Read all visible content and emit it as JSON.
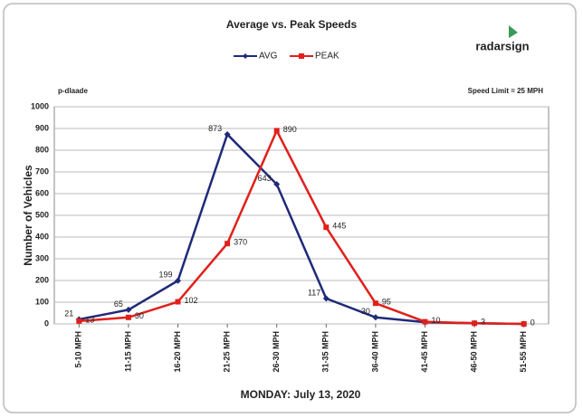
{
  "chart_data": {
    "type": "line",
    "title": "Average vs. Peak Speeds",
    "logo": "radarsign",
    "location": "p-dlaade",
    "annotation": "Speed Limit = 25 MPH",
    "y_label": "Number of Vehicles",
    "x_label": "MONDAY: July 13, 2020",
    "categories": [
      "5-10 MPH",
      "11-15 MPH",
      "16-20 MPH",
      "21-25 MPH",
      "26-30 MPH",
      "31-35 MPH",
      "36-40 MPH",
      "41-45 MPH",
      "46-50 MPH",
      "51-55 MPH"
    ],
    "series": [
      {
        "name": "AVG",
        "color": "#1f2a78",
        "values": [
          21,
          65,
          199,
          873,
          643,
          117,
          30,
          8,
          3,
          0
        ],
        "value_labels": [
          "21",
          "65",
          "199",
          "873",
          "643",
          "117",
          "30",
          null,
          null,
          null
        ]
      },
      {
        "name": "PEAK",
        "color": "#e0201b",
        "values": [
          13,
          30,
          102,
          370,
          890,
          445,
          95,
          10,
          3,
          0
        ]
      }
    ],
    "ylim": [
      0,
      1000
    ],
    "yticks": [
      0,
      100,
      200,
      300,
      400,
      500,
      600,
      700,
      800,
      900,
      1000
    ],
    "grid": true
  }
}
